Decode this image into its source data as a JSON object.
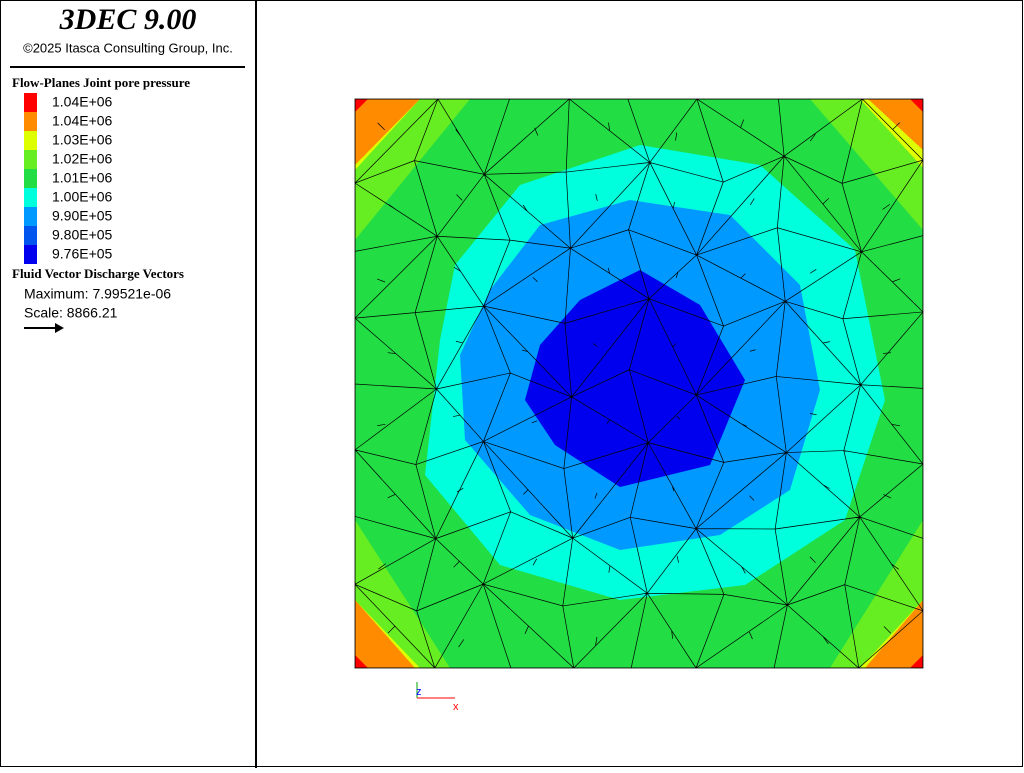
{
  "header": {
    "title": "3DEC 9.00",
    "copyright": "©2025 Itasca Consulting Group, Inc."
  },
  "legend": {
    "title": "Flow-Planes Joint pore pressure",
    "items": [
      {
        "label": "1.04E+06",
        "color": "#ff0000"
      },
      {
        "label": "1.04E+06",
        "color": "#ff8c00"
      },
      {
        "label": "1.03E+06",
        "color": "#ddff00"
      },
      {
        "label": "1.02E+06",
        "color": "#66ee22"
      },
      {
        "label": "1.01E+06",
        "color": "#22dd44"
      },
      {
        "label": "1.00E+06",
        "color": "#00ffdd"
      },
      {
        "label": "9.90E+05",
        "color": "#0099ff"
      },
      {
        "label": "9.80E+05",
        "color": "#0055ee"
      },
      {
        "label": "9.76E+05",
        "color": "#0000ee"
      }
    ]
  },
  "vectors": {
    "title": "Fluid Vector Discharge Vectors",
    "maximum": "Maximum: 7.99521e-06",
    "scale": "Scale: 8866.21"
  },
  "axes": {
    "z": "z",
    "x": "x"
  }
}
